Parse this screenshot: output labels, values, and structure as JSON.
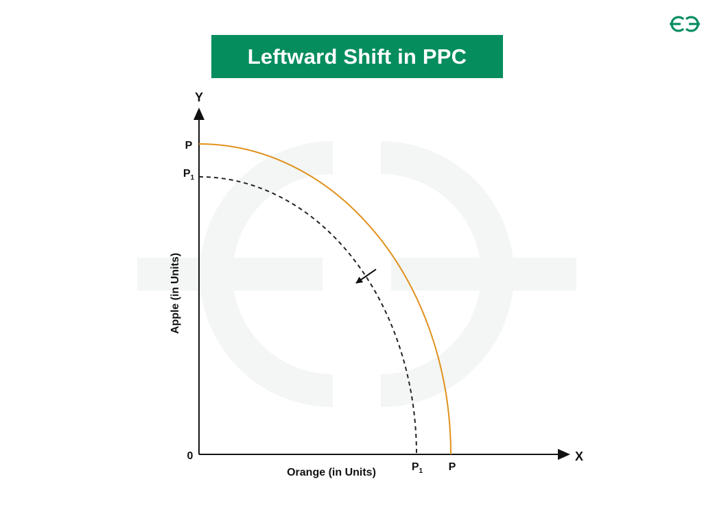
{
  "title": "Leftward Shift in PPC",
  "axes": {
    "y_letter": "Y",
    "x_letter": "X",
    "origin": "0",
    "y_label": "Apple (in Units)",
    "x_label": "Orange (in Units)"
  },
  "curves": {
    "original": {
      "label": "P",
      "style": "solid",
      "color": "#e0901b"
    },
    "shifted": {
      "label": "P",
      "subscript": "1",
      "style": "dashed",
      "color": "#222222"
    }
  },
  "colors": {
    "brand": "#068d5e",
    "axis": "#111111",
    "watermark": "#f2f5f3"
  },
  "logo_icon": "gfg-logo-icon"
}
